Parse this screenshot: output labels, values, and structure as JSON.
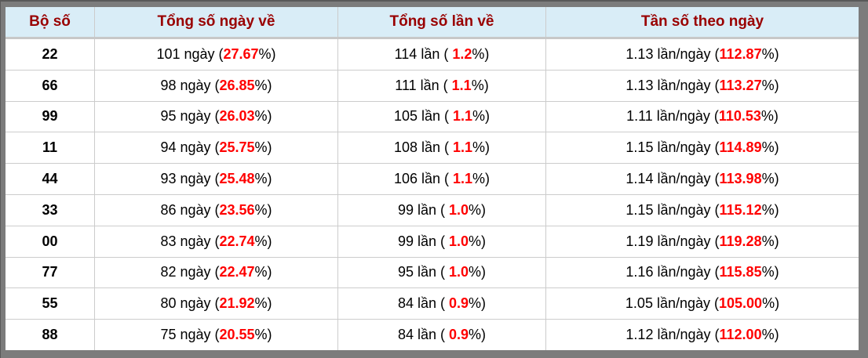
{
  "colors": {
    "frame": "#7c7c7c",
    "frame_dark": "#595959",
    "header_bg": "#d9edf7",
    "header_text": "#990000",
    "header_border": "#c8c8c8",
    "cell_border": "#cccccc",
    "highlight": "#ff0000"
  },
  "table": {
    "headers": [
      "Bộ số",
      "Tổng số ngày về",
      "Tổng số lần về",
      "Tần số theo ngày"
    ],
    "rows": [
      {
        "pair": "22",
        "days_prefix": "101 ngày (",
        "days_value": "27.67",
        "days_suffix": "%)",
        "times_prefix": "114 lần ( ",
        "times_value": "1.2",
        "times_suffix": "%)",
        "freq_prefix": "1.13 lần/ngày (",
        "freq_value": "112.87",
        "freq_suffix": "%)"
      },
      {
        "pair": "66",
        "days_prefix": "98 ngày (",
        "days_value": "26.85",
        "days_suffix": "%)",
        "times_prefix": "111 lần ( ",
        "times_value": "1.1",
        "times_suffix": "%)",
        "freq_prefix": "1.13 lần/ngày (",
        "freq_value": "113.27",
        "freq_suffix": "%)"
      },
      {
        "pair": "99",
        "days_prefix": "95 ngày (",
        "days_value": "26.03",
        "days_suffix": "%)",
        "times_prefix": "105 lần ( ",
        "times_value": "1.1",
        "times_suffix": "%)",
        "freq_prefix": "1.11 lần/ngày (",
        "freq_value": "110.53",
        "freq_suffix": "%)"
      },
      {
        "pair": "11",
        "days_prefix": "94 ngày (",
        "days_value": "25.75",
        "days_suffix": "%)",
        "times_prefix": "108 lần ( ",
        "times_value": "1.1",
        "times_suffix": "%)",
        "freq_prefix": "1.15 lần/ngày (",
        "freq_value": "114.89",
        "freq_suffix": "%)"
      },
      {
        "pair": "44",
        "days_prefix": "93 ngày (",
        "days_value": "25.48",
        "days_suffix": "%)",
        "times_prefix": "106 lần ( ",
        "times_value": "1.1",
        "times_suffix": "%)",
        "freq_prefix": "1.14 lần/ngày (",
        "freq_value": "113.98",
        "freq_suffix": "%)"
      },
      {
        "pair": "33",
        "days_prefix": "86 ngày (",
        "days_value": "23.56",
        "days_suffix": "%)",
        "times_prefix": "99 lần ( ",
        "times_value": "1.0",
        "times_suffix": "%)",
        "freq_prefix": "1.15 lần/ngày (",
        "freq_value": "115.12",
        "freq_suffix": "%)"
      },
      {
        "pair": "00",
        "days_prefix": "83 ngày (",
        "days_value": "22.74",
        "days_suffix": "%)",
        "times_prefix": "99 lần ( ",
        "times_value": "1.0",
        "times_suffix": "%)",
        "freq_prefix": "1.19 lần/ngày (",
        "freq_value": "119.28",
        "freq_suffix": "%)"
      },
      {
        "pair": "77",
        "days_prefix": "82 ngày (",
        "days_value": "22.47",
        "days_suffix": "%)",
        "times_prefix": "95 lần ( ",
        "times_value": "1.0",
        "times_suffix": "%)",
        "freq_prefix": "1.16 lần/ngày (",
        "freq_value": "115.85",
        "freq_suffix": "%)"
      },
      {
        "pair": "55",
        "days_prefix": "80 ngày (",
        "days_value": "21.92",
        "days_suffix": "%)",
        "times_prefix": "84 lần ( ",
        "times_value": "0.9",
        "times_suffix": "%)",
        "freq_prefix": "1.05 lần/ngày (",
        "freq_value": "105.00",
        "freq_suffix": "%)"
      },
      {
        "pair": "88",
        "days_prefix": "75 ngày (",
        "days_value": "20.55",
        "days_suffix": "%)",
        "times_prefix": "84 lần ( ",
        "times_value": "0.9",
        "times_suffix": "%)",
        "freq_prefix": "1.12 lần/ngày (",
        "freq_value": "112.00",
        "freq_suffix": "%)"
      }
    ]
  }
}
